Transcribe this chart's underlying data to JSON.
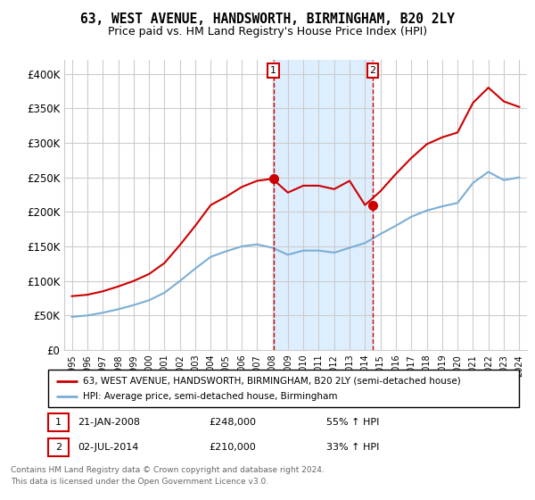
{
  "title": "63, WEST AVENUE, HANDSWORTH, BIRMINGHAM, B20 2LY",
  "subtitle": "Price paid vs. HM Land Registry's House Price Index (HPI)",
  "ylabel_ticks": [
    "£0",
    "£50K",
    "£100K",
    "£150K",
    "£200K",
    "£250K",
    "£300K",
    "£350K",
    "£400K"
  ],
  "ylim": [
    0,
    420000
  ],
  "xlim_start": 1994.5,
  "xlim_end": 2024.5,
  "sale1_x": 2008.055,
  "sale1_y": 248000,
  "sale1_label": "1",
  "sale1_date": "21-JAN-2008",
  "sale1_price": "£248,000",
  "sale1_hpi": "55% ↑ HPI",
  "sale2_x": 2014.5,
  "sale2_y": 210000,
  "sale2_label": "2",
  "sale2_date": "02-JUL-2014",
  "sale2_price": "£210,000",
  "sale2_hpi": "33% ↑ HPI",
  "red_color": "#cc0000",
  "blue_color": "#7aaed6",
  "shade_color": "#ddeeff",
  "grid_color": "#cccccc",
  "background_color": "#ffffff",
  "legend_line1": "63, WEST AVENUE, HANDSWORTH, BIRMINGHAM, B20 2LY (semi-detached house)",
  "legend_line2": "HPI: Average price, semi-detached house, Birmingham",
  "footer1": "Contains HM Land Registry data © Crown copyright and database right 2024.",
  "footer2": "This data is licensed under the Open Government Licence v3.0.",
  "hpi_data_years": [
    1995,
    1996,
    1997,
    1998,
    1999,
    2000,
    2001,
    2002,
    2003,
    2004,
    2005,
    2006,
    2007,
    2008,
    2009,
    2010,
    2011,
    2012,
    2013,
    2014,
    2015,
    2016,
    2017,
    2018,
    2019,
    2020,
    2021,
    2022,
    2023,
    2024
  ],
  "hpi_values": [
    48000,
    50000,
    54000,
    59000,
    65000,
    72000,
    83000,
    100000,
    118000,
    135000,
    143000,
    150000,
    153000,
    148000,
    138000,
    144000,
    144000,
    141000,
    148000,
    155000,
    168000,
    180000,
    193000,
    202000,
    208000,
    213000,
    242000,
    258000,
    246000,
    250000
  ],
  "red_data_years": [
    1995,
    1996,
    1997,
    1998,
    1999,
    2000,
    2001,
    2002,
    2003,
    2004,
    2005,
    2006,
    2007,
    2008,
    2009,
    2010,
    2011,
    2012,
    2013,
    2014,
    2015,
    2016,
    2017,
    2018,
    2019,
    2020,
    2021,
    2022,
    2023,
    2024
  ],
  "red_values": [
    78000,
    80000,
    85000,
    92000,
    100000,
    110000,
    126000,
    152000,
    180000,
    210000,
    222000,
    236000,
    245000,
    248000,
    228000,
    238000,
    238000,
    233000,
    245000,
    210000,
    230000,
    255000,
    278000,
    298000,
    308000,
    315000,
    358000,
    380000,
    360000,
    352000
  ]
}
